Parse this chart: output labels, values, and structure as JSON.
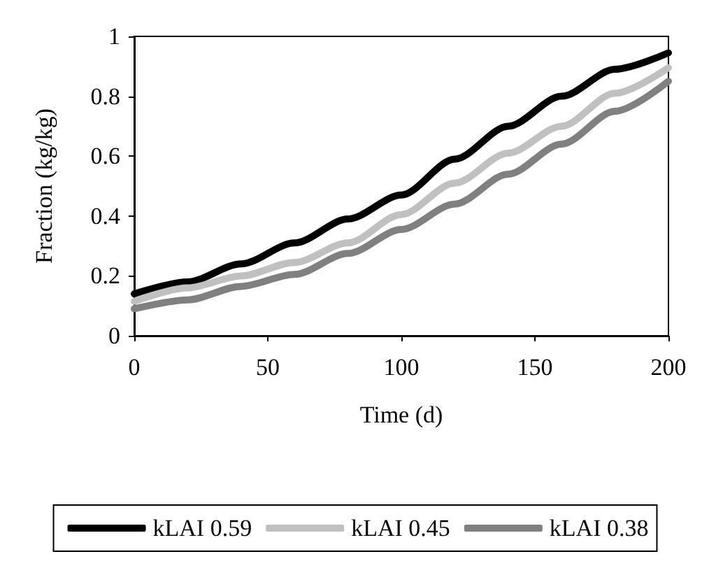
{
  "chart_data": {
    "type": "line",
    "xlabel": "Time (d)",
    "ylabel": "Fraction (kg/kg)",
    "x": [
      0,
      20,
      40,
      60,
      80,
      100,
      120,
      140,
      160,
      180,
      200
    ],
    "series": [
      {
        "name": "kLAI 0.59",
        "color": "#000000",
        "values": [
          0.14,
          0.18,
          0.24,
          0.31,
          0.39,
          0.47,
          0.59,
          0.7,
          0.8,
          0.89,
          0.945
        ]
      },
      {
        "name": "kLAI 0.45",
        "color": "#c0c0c0",
        "values": [
          0.115,
          0.16,
          0.2,
          0.245,
          0.31,
          0.405,
          0.51,
          0.61,
          0.7,
          0.81,
          0.895
        ]
      },
      {
        "name": "kLAI 0.38",
        "color": "#808080",
        "values": [
          0.09,
          0.12,
          0.165,
          0.205,
          0.275,
          0.355,
          0.44,
          0.54,
          0.64,
          0.75,
          0.85
        ]
      }
    ],
    "xlim": [
      0,
      200
    ],
    "xticks": [
      0,
      50,
      100,
      150,
      200
    ],
    "ylim": [
      0,
      1
    ],
    "yticks": [
      0,
      0.2,
      0.4,
      0.6,
      0.8,
      1
    ],
    "grid": false,
    "legend": "bottom",
    "marker": "none",
    "line_style": "solid"
  }
}
